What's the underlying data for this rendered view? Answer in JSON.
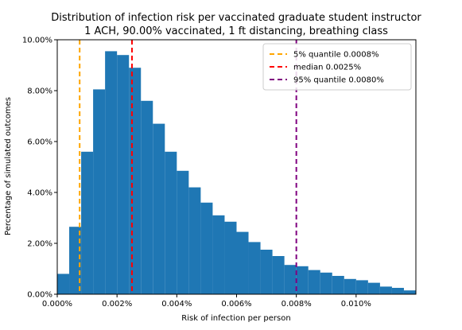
{
  "chart_data": {
    "type": "bar",
    "title": "Distribution of infection risk per vaccinated graduate student instructor",
    "subtitle": "1 ACH, 90.00% vaccinated, 1 ft distancing, breathing class",
    "xlabel": "Risk of infection per person",
    "ylabel": "Percentage of simulated outcomes",
    "xlim": [
      0.0,
      0.012
    ],
    "ylim": [
      0.0,
      10.0
    ],
    "xticks": [
      {
        "value": 0.0,
        "label": "0.000%"
      },
      {
        "value": 0.002,
        "label": "0.002%"
      },
      {
        "value": 0.004,
        "label": "0.004%"
      },
      {
        "value": 0.006,
        "label": "0.006%"
      },
      {
        "value": 0.008,
        "label": "0.008%"
      },
      {
        "value": 0.01,
        "label": "0.010%"
      }
    ],
    "yticks": [
      {
        "value": 0.0,
        "label": "0.00%"
      },
      {
        "value": 2.0,
        "label": "2.00%"
      },
      {
        "value": 4.0,
        "label": "4.00%"
      },
      {
        "value": 6.0,
        "label": "6.00%"
      },
      {
        "value": 8.0,
        "label": "8.00%"
      },
      {
        "value": 10.0,
        "label": "10.00%"
      }
    ],
    "bin_width": 0.0004,
    "bin_starts": [
      0.0,
      0.0004,
      0.0008,
      0.0012,
      0.0016,
      0.002,
      0.0024,
      0.0028,
      0.0032,
      0.0036,
      0.004,
      0.0044,
      0.0048,
      0.0052,
      0.0056,
      0.006,
      0.0064,
      0.0068,
      0.0072,
      0.0076,
      0.008,
      0.0084,
      0.0088,
      0.0092,
      0.0096,
      0.01,
      0.0104,
      0.0108,
      0.0112,
      0.0116
    ],
    "values": [
      0.8,
      2.65,
      5.6,
      8.05,
      9.55,
      9.4,
      8.9,
      7.6,
      6.7,
      5.6,
      4.85,
      4.2,
      3.6,
      3.1,
      2.85,
      2.45,
      2.05,
      1.75,
      1.5,
      1.15,
      1.1,
      0.95,
      0.85,
      0.72,
      0.6,
      0.55,
      0.45,
      0.3,
      0.25,
      0.15
    ],
    "bar_color": "#1f77b4",
    "grid": false,
    "legend_placement": "top-right",
    "reference_lines": [
      {
        "name": "5% quantile 0.0008%",
        "value": 0.00075,
        "color": "#ffa500",
        "style": "dashed"
      },
      {
        "name": "median 0.0025%",
        "value": 0.0025,
        "color": "#ff0000",
        "style": "dashed"
      },
      {
        "name": "95% quantile 0.0080%",
        "value": 0.008,
        "color": "#800080",
        "style": "dashed"
      }
    ]
  }
}
